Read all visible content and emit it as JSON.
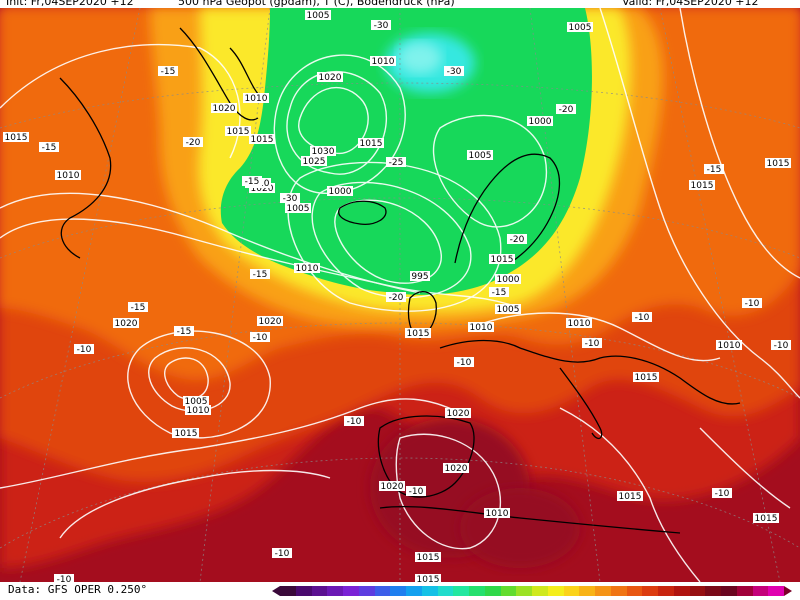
{
  "header": {
    "left": "Init: Fr,04SEP2020 +12",
    "center": "500 hPa Geopot (gpdam), T (C), Bodendruck (hPa)",
    "right": "Valid: Fr,04SEP2020 +12"
  },
  "footer": {
    "credit": "Data: GFS OPER 0.250°"
  },
  "colors": {
    "darkred": "#a40d1e",
    "red": "#cc2417",
    "redorange": "#e0440f",
    "orange": "#f06b10",
    "amber": "#f9a017",
    "yellow": "#fbe82a",
    "green": "#17d85a",
    "cyan": "#36e8e0",
    "land": "#000000"
  },
  "legend_colors": [
    "#3a0a3a",
    "#4a0a6e",
    "#5b1191",
    "#6b19b5",
    "#7a22d6",
    "#5d3de0",
    "#3c5ee9",
    "#1e7fef",
    "#12a1ef",
    "#13c1e6",
    "#20dccc",
    "#22e7a0",
    "#24e06e",
    "#2fd84a",
    "#62dc2f",
    "#9be225",
    "#cfe91e",
    "#f4ee1c",
    "#fbd31a",
    "#f8b417",
    "#f59416",
    "#f07514",
    "#e85712",
    "#dc3c10",
    "#c8250f",
    "#b0140f",
    "#961012",
    "#7a0a18",
    "#6a0620",
    "#a0003a",
    "#c4007a",
    "#e000b0"
  ],
  "pressure_labels": [
    {
      "t": "1005"
    },
    {
      "t": "1010"
    },
    {
      "t": "1020"
    },
    {
      "t": "1015"
    },
    {
      "t": "1015"
    },
    {
      "t": "1010"
    },
    {
      "t": "1020"
    },
    {
      "t": "1030"
    },
    {
      "t": "1025"
    },
    {
      "t": "1015"
    },
    {
      "t": "1020"
    },
    {
      "t": "1010"
    },
    {
      "t": "1005"
    },
    {
      "t": "1000"
    },
    {
      "t": "1005"
    },
    {
      "t": "1000"
    },
    {
      "t": "1010"
    },
    {
      "t": "995"
    },
    {
      "t": "1000"
    },
    {
      "t": "1005"
    },
    {
      "t": "1010"
    },
    {
      "t": "1015"
    },
    {
      "t": "1020"
    },
    {
      "t": "1015"
    },
    {
      "t": "1020"
    },
    {
      "t": "1005"
    },
    {
      "t": "1010"
    },
    {
      "t": "1015"
    },
    {
      "t": "1020"
    },
    {
      "t": "1020"
    },
    {
      "t": "1020"
    },
    {
      "t": "1010"
    },
    {
      "t": "1015"
    },
    {
      "t": "1015"
    },
    {
      "t": "1010"
    },
    {
      "t": "1015"
    },
    {
      "t": "1010"
    },
    {
      "t": "1015"
    },
    {
      "t": "1015"
    },
    {
      "t": "1015"
    },
    {
      "t": "1005"
    },
    {
      "t": "1015"
    },
    {
      "t": "1010"
    },
    {
      "t": "1015"
    },
    {
      "t": "1015"
    }
  ],
  "temp_labels": [
    {
      "t": "-30"
    },
    {
      "t": "-30"
    },
    {
      "t": "-15"
    },
    {
      "t": "-20"
    },
    {
      "t": "-15"
    },
    {
      "t": "-25"
    },
    {
      "t": "-20"
    },
    {
      "t": "-20"
    },
    {
      "t": "-20"
    },
    {
      "t": "-30"
    },
    {
      "t": "-15"
    },
    {
      "t": "-15"
    },
    {
      "t": "-15"
    },
    {
      "t": "-10"
    },
    {
      "t": "-10"
    },
    {
      "t": "-10"
    },
    {
      "t": "-15"
    },
    {
      "t": "-10"
    },
    {
      "t": "-10"
    },
    {
      "t": "-10"
    },
    {
      "t": "-10"
    },
    {
      "t": "-15"
    },
    {
      "t": "-10"
    },
    {
      "t": "-10"
    },
    {
      "t": "-10"
    },
    {
      "t": "-10"
    },
    {
      "t": "-15"
    },
    {
      "t": "-10"
    }
  ]
}
